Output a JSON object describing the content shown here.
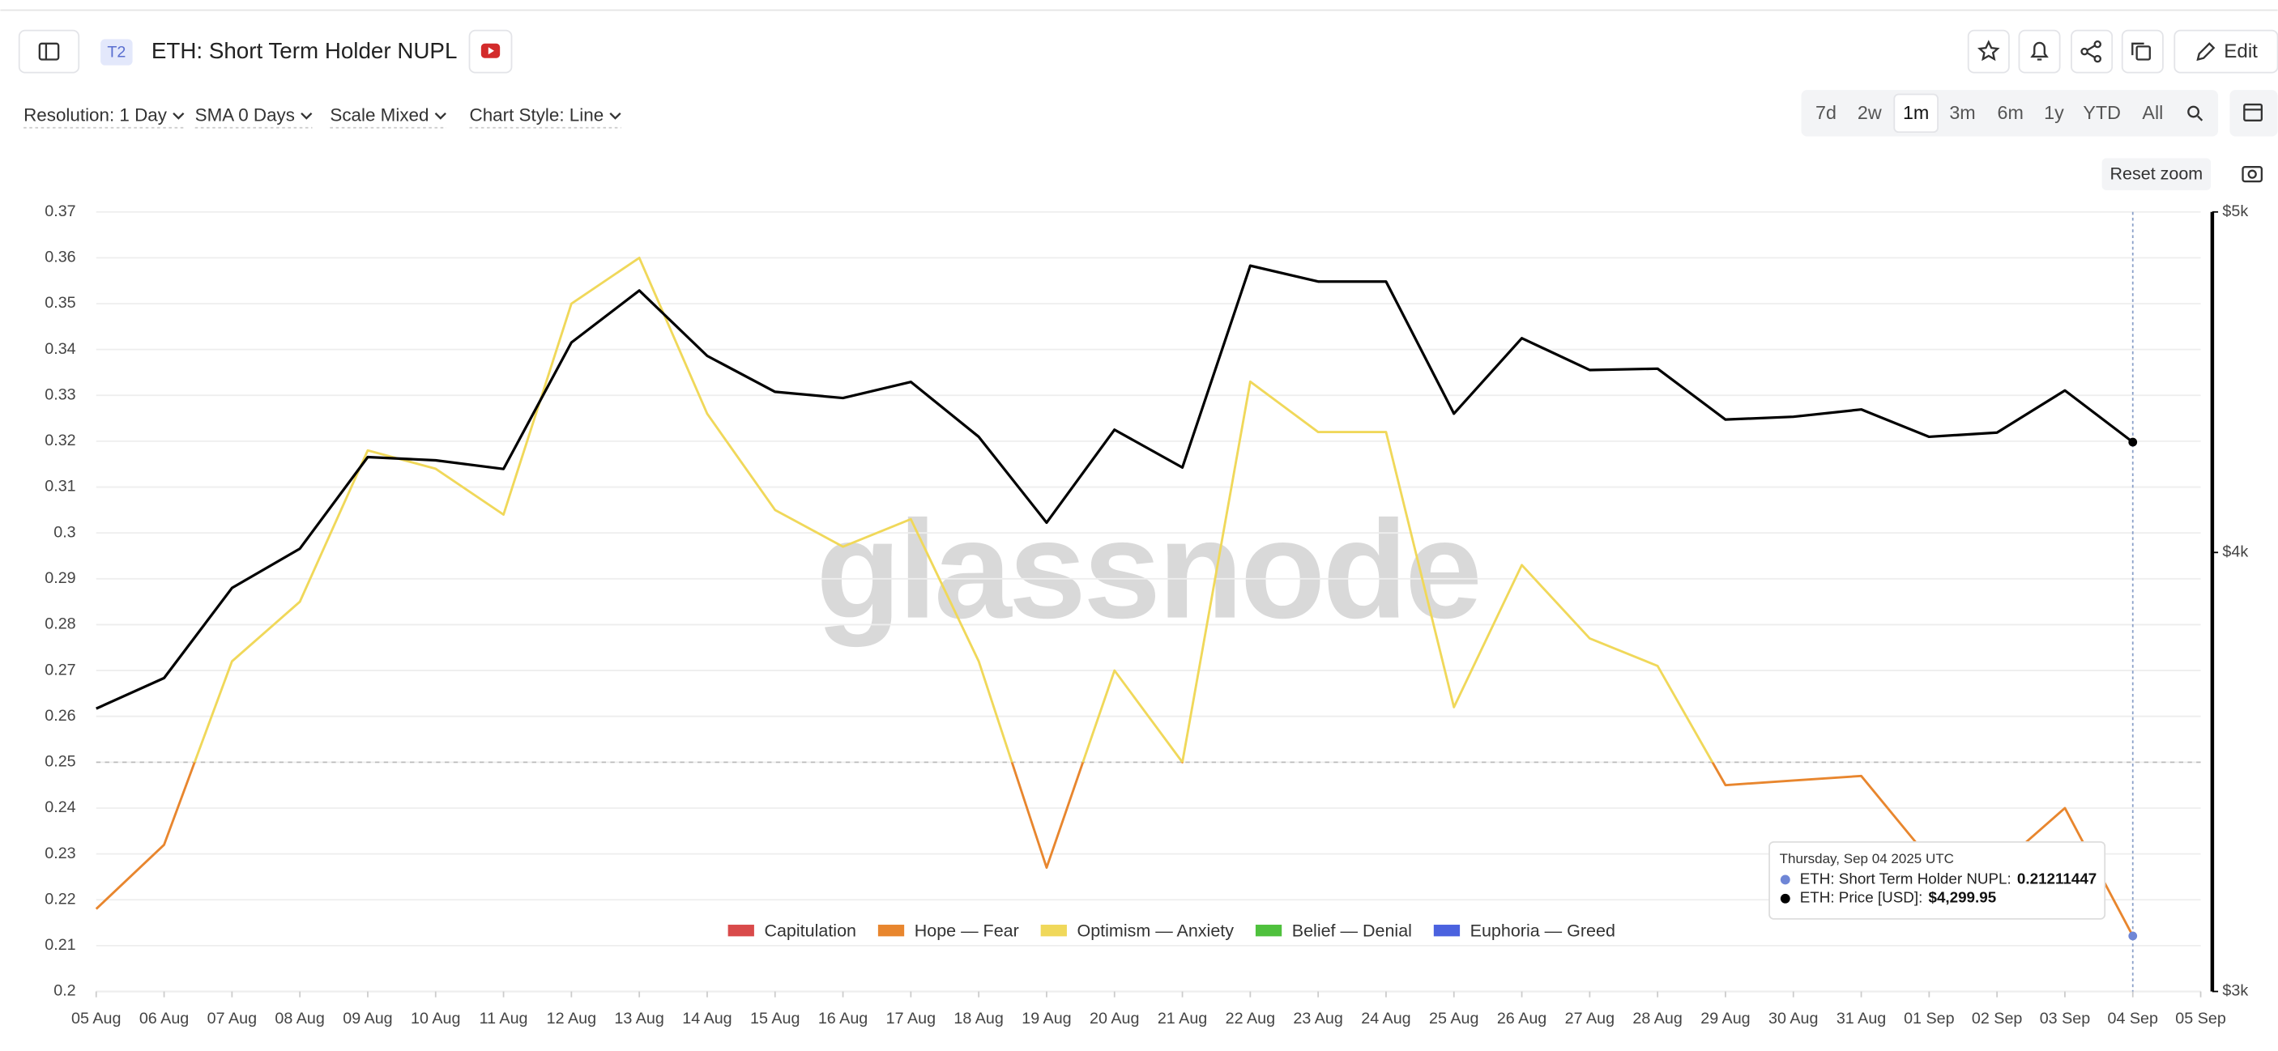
{
  "header": {
    "badge": "T2",
    "title": "ETH: Short Term Holder NUPL",
    "edit": "Edit"
  },
  "toolbar": {
    "dropdowns": [
      "Resolution: 1 Day",
      "SMA 0 Days",
      "Scale Mixed",
      "Chart Style: Line"
    ],
    "ranges": [
      "7d",
      "2w",
      "1m",
      "3m",
      "6m",
      "1y",
      "YTD",
      "All"
    ],
    "active_range": "1m",
    "reset_zoom": "Reset zoom"
  },
  "chart_data": {
    "type": "line",
    "watermark": "glassnode",
    "categories": [
      "05 Aug",
      "06 Aug",
      "07 Aug",
      "08 Aug",
      "09 Aug",
      "10 Aug",
      "11 Aug",
      "12 Aug",
      "13 Aug",
      "14 Aug",
      "15 Aug",
      "16 Aug",
      "17 Aug",
      "18 Aug",
      "19 Aug",
      "20 Aug",
      "21 Aug",
      "22 Aug",
      "23 Aug",
      "24 Aug",
      "25 Aug",
      "26 Aug",
      "27 Aug",
      "28 Aug",
      "29 Aug",
      "30 Aug",
      "31 Aug",
      "01 Sep",
      "02 Sep",
      "03 Sep",
      "04 Sep",
      "05 Sep"
    ],
    "series": [
      {
        "name": "ETH: Short Term Holder NUPL",
        "color": "#6f86d6",
        "values": [
          0.218,
          0.232,
          0.272,
          0.285,
          0.318,
          0.314,
          0.304,
          0.35,
          0.36,
          0.326,
          0.305,
          0.297,
          0.303,
          0.272,
          0.227,
          0.27,
          0.25,
          0.333,
          0.322,
          0.322,
          0.262,
          0.293,
          0.277,
          0.271,
          0.245,
          0.246,
          0.247,
          0.229,
          0.227,
          0.24,
          0.21211447,
          null
        ]
      },
      {
        "name": "ETH: Price [USD]",
        "color": "#000000",
        "axis": "y2",
        "values": [
          3611,
          3684,
          3908,
          4010,
          4258,
          4249,
          4225,
          4590,
          4749,
          4550,
          4444,
          4426,
          4473,
          4315,
          4079,
          4335,
          4229,
          4827,
          4777,
          4777,
          4381,
          4603,
          4508,
          4512,
          4364,
          4372,
          4393,
          4315,
          4327,
          4448,
          4299.95,
          null
        ]
      }
    ],
    "ylim": [
      0.2,
      0.37
    ],
    "yticks": [
      0.2,
      0.21,
      0.22,
      0.23,
      0.24,
      0.25,
      0.26,
      0.27,
      0.28,
      0.29,
      0.3,
      0.31,
      0.32,
      0.33,
      0.34,
      0.35,
      0.36,
      0.37
    ],
    "y2lim": [
      3000,
      5000
    ],
    "y2scale": "log",
    "y2ticks": [
      {
        "value": 3000,
        "label": "$3k"
      },
      {
        "value": 4000,
        "label": "$4k"
      },
      {
        "value": 5000,
        "label": "$5k"
      }
    ],
    "grid": true,
    "reference_lines": [
      0.25
    ],
    "legend": {
      "position": "bottom",
      "items": [
        {
          "name": "Capitulation",
          "color": "#d94a4a"
        },
        {
          "name": "Hope — Fear",
          "color": "#e8862e"
        },
        {
          "name": "Optimism — Anxiety",
          "color": "#f0d85a"
        },
        {
          "name": "Belief — Denial",
          "color": "#4fc13d"
        },
        {
          "name": "Euphoria — Greed",
          "color": "#4b62df"
        }
      ]
    },
    "tooltip": {
      "date": "Thursday, Sep 04 2025 UTC",
      "rows": [
        {
          "label": "ETH: Short Term Holder NUPL:",
          "value": "0.21211447"
        },
        {
          "label": "ETH: Price [USD]:",
          "value": "$4,299.95"
        }
      ]
    }
  }
}
